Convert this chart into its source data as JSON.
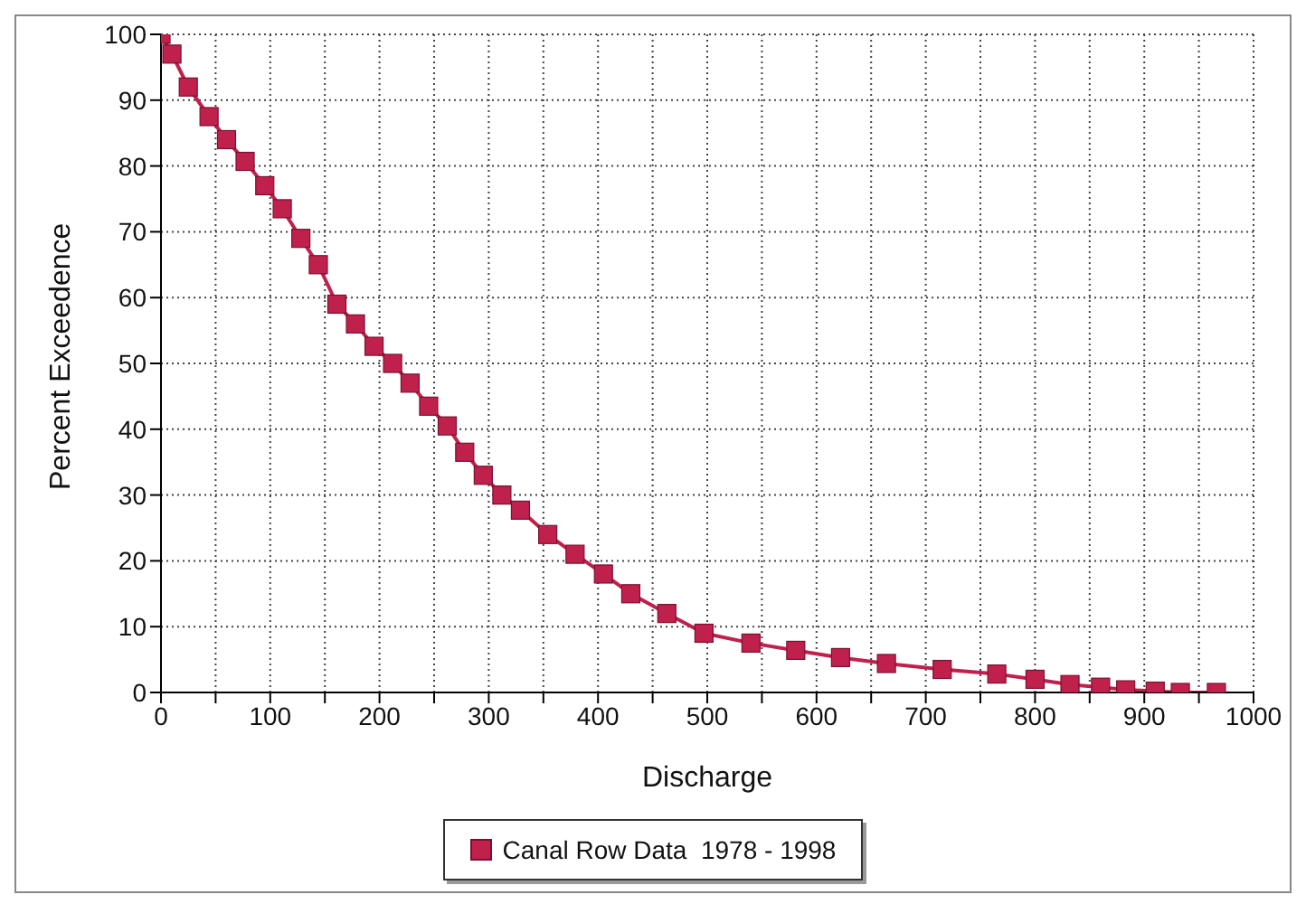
{
  "chart_data": {
    "type": "line",
    "xlabel": "Discharge",
    "ylabel": "Percent Exceedence",
    "x": [
      0,
      10,
      25,
      44,
      60,
      77,
      95,
      111,
      128,
      144,
      161,
      178,
      195,
      212,
      228,
      245,
      262,
      278,
      295,
      312,
      329,
      354,
      379,
      405,
      430,
      463,
      497,
      540,
      581,
      622,
      664,
      715,
      765,
      800,
      832,
      860,
      883,
      910,
      933,
      966
    ],
    "series": [
      {
        "name": "Canal Row Data  1978 - 1998",
        "color": "#c0204c",
        "values": [
          100,
          97,
          92,
          87.5,
          84,
          80.7,
          77,
          73.5,
          69,
          65,
          59,
          56,
          52.6,
          50,
          47,
          43.5,
          40.5,
          36.5,
          33,
          30,
          27.7,
          24,
          21,
          18,
          15,
          12,
          9,
          7.5,
          6.4,
          5.3,
          4.4,
          3.5,
          2.8,
          2,
          1.2,
          0.8,
          0.4,
          0.2,
          0,
          0
        ]
      }
    ],
    "xlim": [
      0,
      1000
    ],
    "xticks": [
      0,
      {
        "value": 50,
        "label": null
      },
      100,
      {
        "value": 150,
        "label": null
      },
      200,
      {
        "value": 250,
        "label": null
      },
      300,
      {
        "value": 350,
        "label": null
      },
      400,
      {
        "value": 450,
        "label": null
      },
      500,
      {
        "value": 550,
        "label": null
      },
      600,
      {
        "value": 650,
        "label": null
      },
      700,
      {
        "value": 750,
        "label": null
      },
      800,
      {
        "value": 850,
        "label": null
      },
      900,
      {
        "value": 950,
        "label": null
      },
      1000
    ],
    "ylim": [
      0,
      100
    ],
    "yticks": [
      0,
      10,
      20,
      30,
      40,
      50,
      60,
      70,
      80,
      90,
      100
    ],
    "grid": true,
    "legend": "bottom",
    "marker": "square",
    "line_style": "solid"
  }
}
